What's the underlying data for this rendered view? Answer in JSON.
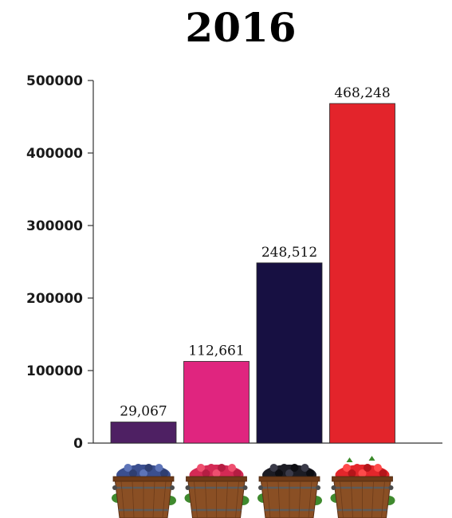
{
  "chart_data": {
    "type": "bar",
    "title": "2016",
    "xlabel": "",
    "ylabel": "",
    "ylim": [
      0,
      500000
    ],
    "yticks": [
      "0",
      "100000",
      "200000",
      "300000",
      "400000",
      "500000"
    ],
    "grid": false,
    "categories": [
      "blueberry-basket-icon",
      "raspberry-basket-icon",
      "blackberry-basket-icon",
      "strawberry-basket-icon"
    ],
    "values": [
      29067,
      112661,
      248512,
      468248
    ],
    "data_labels": [
      "29,067",
      "112,661",
      "248,512",
      "468,248"
    ],
    "colors": [
      "#4e2063",
      "#e0257f",
      "#171042",
      "#e3242b"
    ]
  }
}
